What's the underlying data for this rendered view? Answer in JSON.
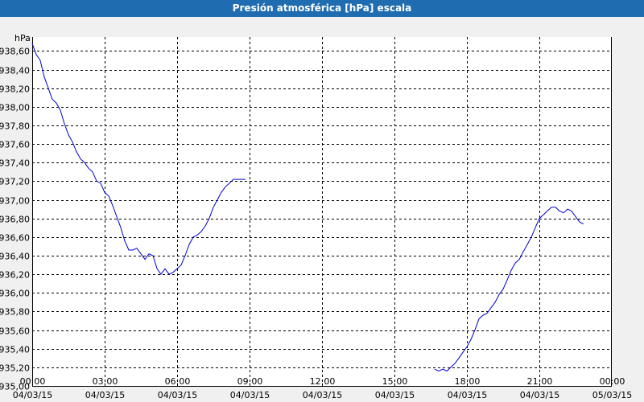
{
  "window": {
    "title": "Presión atmosférica [hPa] escala"
  },
  "chart_data": {
    "type": "line",
    "title": "Presión atmosférica [hPa] escala",
    "ylabel": "hPa",
    "xlabel": "",
    "ylim": [
      935.0,
      938.75
    ],
    "yticks": [
      935.0,
      935.2,
      935.4,
      935.6,
      935.8,
      936.0,
      936.2,
      936.4,
      936.6,
      936.8,
      937.0,
      937.2,
      937.4,
      937.6,
      937.8,
      938.0,
      938.2,
      938.4,
      938.6
    ],
    "ytick_labels": [
      "935,00",
      "935,20",
      "935,40",
      "935,60",
      "935,80",
      "936,00",
      "936,20",
      "936,40",
      "936,60",
      "936,80",
      "937,00",
      "937,20",
      "937,40",
      "937,60",
      "937,80",
      "938,00",
      "938,20",
      "938,40",
      "938,60"
    ],
    "xlim_hours": [
      0,
      24
    ],
    "xticks": [
      {
        "hours": 0,
        "time": "00:00",
        "date": "04/03/15"
      },
      {
        "hours": 3,
        "time": "03:00",
        "date": "04/03/15"
      },
      {
        "hours": 6,
        "time": "06:00",
        "date": "04/03/15"
      },
      {
        "hours": 9,
        "time": "09:00",
        "date": "04/03/15"
      },
      {
        "hours": 12,
        "time": "12:00",
        "date": "04/03/15"
      },
      {
        "hours": 15,
        "time": "15:00",
        "date": "04/03/15"
      },
      {
        "hours": 18,
        "time": "18:00",
        "date": "04/03/15"
      },
      {
        "hours": 21,
        "time": "21:00",
        "date": "04/03/15"
      },
      {
        "hours": 24,
        "time": "00:00",
        "date": "05/03/15"
      }
    ],
    "grid": true,
    "line_color": "#0000cc",
    "series": [
      {
        "segments": [
          [
            [
              0.0,
              938.68
            ],
            [
              0.17,
              938.56
            ],
            [
              0.33,
              938.5
            ],
            [
              0.5,
              938.32
            ],
            [
              0.67,
              938.2
            ],
            [
              0.83,
              938.08
            ],
            [
              1.0,
              938.04
            ],
            [
              1.17,
              937.96
            ],
            [
              1.33,
              937.82
            ],
            [
              1.5,
              937.7
            ],
            [
              1.67,
              937.62
            ],
            [
              1.83,
              937.52
            ],
            [
              2.0,
              937.44
            ],
            [
              2.17,
              937.4
            ],
            [
              2.33,
              937.34
            ],
            [
              2.5,
              937.3
            ],
            [
              2.67,
              937.2
            ],
            [
              2.83,
              937.18
            ],
            [
              3.0,
              937.08
            ],
            [
              3.17,
              937.04
            ],
            [
              3.33,
              936.94
            ],
            [
              3.5,
              936.82
            ],
            [
              3.67,
              936.7
            ],
            [
              3.83,
              936.56
            ],
            [
              4.0,
              936.46
            ],
            [
              4.17,
              936.46
            ],
            [
              4.33,
              936.48
            ],
            [
              4.5,
              936.42
            ],
            [
              4.67,
              936.36
            ],
            [
              4.83,
              936.42
            ],
            [
              5.0,
              936.4
            ],
            [
              5.17,
              936.26
            ],
            [
              5.33,
              936.2
            ],
            [
              5.5,
              936.26
            ],
            [
              5.67,
              936.2
            ],
            [
              5.83,
              936.22
            ],
            [
              6.0,
              936.26
            ],
            [
              6.17,
              936.3
            ],
            [
              6.33,
              936.4
            ],
            [
              6.5,
              936.52
            ],
            [
              6.67,
              936.6
            ],
            [
              6.83,
              936.62
            ],
            [
              7.0,
              936.66
            ],
            [
              7.17,
              936.72
            ],
            [
              7.33,
              936.8
            ],
            [
              7.5,
              936.92
            ],
            [
              7.67,
              937.0
            ],
            [
              7.83,
              937.08
            ],
            [
              8.0,
              937.14
            ],
            [
              8.17,
              937.18
            ],
            [
              8.33,
              937.22
            ],
            [
              8.5,
              937.22
            ],
            [
              8.67,
              937.22
            ],
            [
              8.83,
              937.22
            ]
          ],
          [
            [
              16.67,
              935.18
            ],
            [
              16.83,
              935.16
            ],
            [
              17.0,
              935.18
            ],
            [
              17.17,
              935.16
            ],
            [
              17.33,
              935.2
            ],
            [
              17.5,
              935.24
            ],
            [
              17.67,
              935.3
            ],
            [
              17.83,
              935.36
            ],
            [
              18.0,
              935.42
            ],
            [
              18.17,
              935.5
            ],
            [
              18.33,
              935.6
            ],
            [
              18.5,
              935.72
            ],
            [
              18.67,
              935.76
            ],
            [
              18.83,
              935.78
            ],
            [
              19.0,
              935.84
            ],
            [
              19.17,
              935.9
            ],
            [
              19.33,
              935.98
            ],
            [
              19.5,
              936.04
            ],
            [
              19.67,
              936.14
            ],
            [
              19.83,
              936.24
            ],
            [
              20.0,
              936.32
            ],
            [
              20.17,
              936.36
            ],
            [
              20.33,
              936.44
            ],
            [
              20.5,
              936.52
            ],
            [
              20.67,
              936.6
            ],
            [
              20.83,
              936.7
            ],
            [
              21.0,
              936.8
            ],
            [
              21.17,
              936.84
            ],
            [
              21.33,
              936.88
            ],
            [
              21.5,
              936.92
            ],
            [
              21.67,
              936.92
            ],
            [
              21.83,
              936.88
            ],
            [
              22.0,
              936.86
            ],
            [
              22.17,
              936.9
            ],
            [
              22.33,
              936.88
            ],
            [
              22.5,
              936.82
            ],
            [
              22.67,
              936.76
            ],
            [
              22.83,
              936.74
            ]
          ]
        ]
      }
    ]
  }
}
